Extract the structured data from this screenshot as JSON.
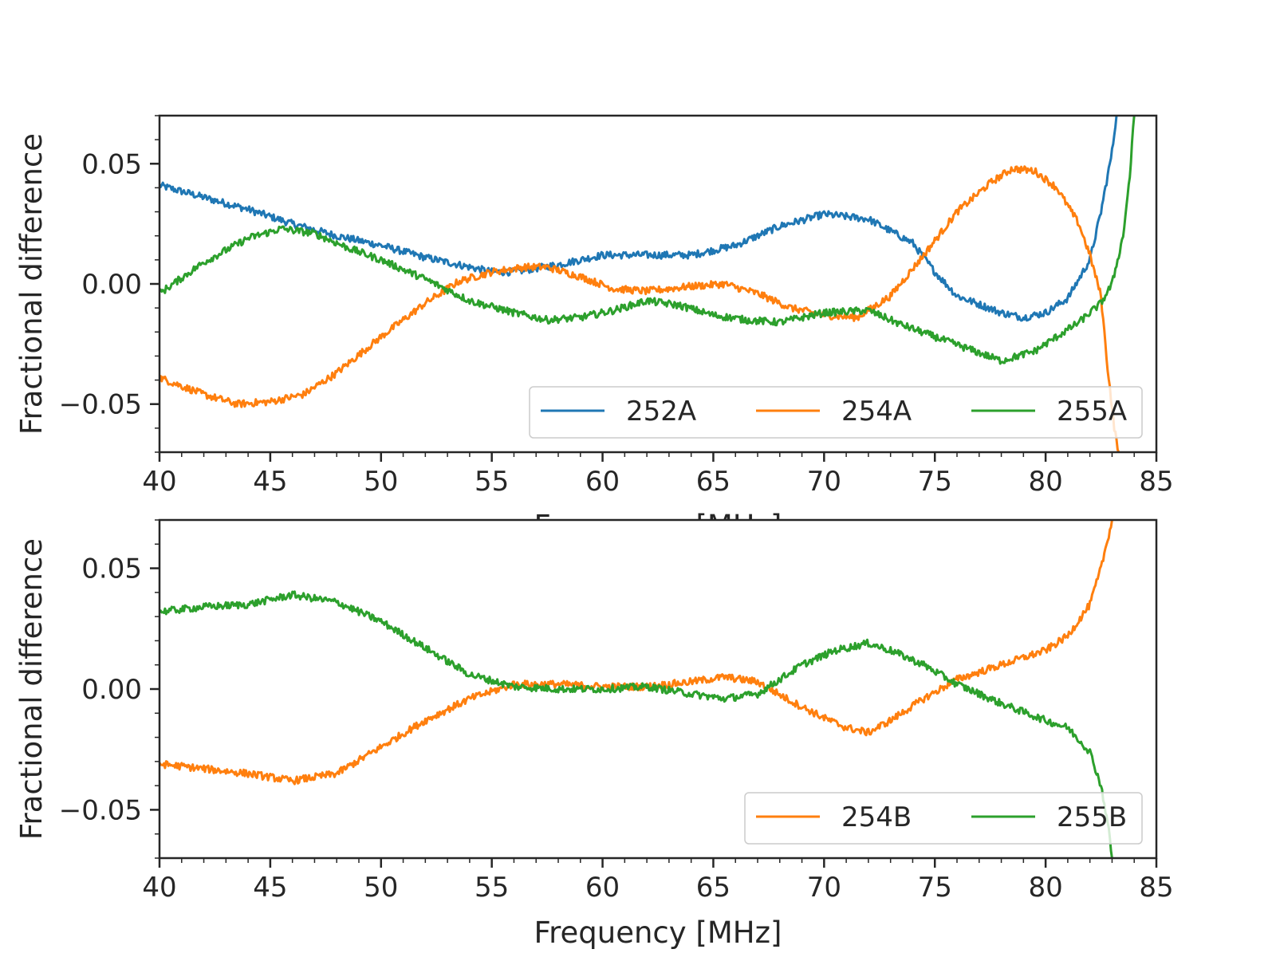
{
  "chart_data": [
    {
      "type": "line",
      "panel": "top",
      "xlabel": "Frequency [MHz]",
      "ylabel": "Fractional difference",
      "xlim": [
        40,
        85
      ],
      "ylim": [
        -0.07,
        0.07
      ],
      "xticks": [
        40,
        45,
        50,
        55,
        60,
        65,
        70,
        75,
        80,
        85
      ],
      "xtick_labels": [
        "40",
        "45",
        "50",
        "55",
        "60",
        "65",
        "70",
        "75",
        "80",
        "85"
      ],
      "yticks": [
        -0.05,
        0.0,
        0.05
      ],
      "ytick_labels": [
        "−0.05",
        "0.00",
        "0.05"
      ],
      "legend_position": "lower-right",
      "series": [
        {
          "name": "252A",
          "color": "#1f77b4",
          "x": [
            40,
            42,
            44,
            46,
            48,
            50,
            52,
            54,
            55,
            56,
            58,
            60,
            62,
            64,
            66,
            68,
            70,
            72,
            74,
            75,
            76,
            78,
            79,
            80,
            81,
            82,
            82.5,
            83,
            83.2
          ],
          "y": [
            0.041,
            0.036,
            0.031,
            0.025,
            0.02,
            0.016,
            0.011,
            0.007,
            0.005,
            0.005,
            0.008,
            0.012,
            0.012,
            0.012,
            0.016,
            0.024,
            0.029,
            0.027,
            0.017,
            0.005,
            -0.005,
            -0.012,
            -0.014,
            -0.012,
            -0.006,
            0.01,
            0.03,
            0.055,
            0.07
          ]
        },
        {
          "name": "254A",
          "color": "#ff7f0e",
          "x": [
            40,
            42,
            43.5,
            45,
            46.5,
            48,
            50,
            52,
            53.5,
            55,
            56.5,
            57.5,
            59,
            60.5,
            62,
            64,
            65.5,
            67,
            68.5,
            70,
            71.5,
            73,
            74.5,
            76,
            77.5,
            78.5,
            79.5,
            80.5,
            81.5,
            82,
            82.5,
            82.8,
            83.1,
            83.3
          ],
          "y": [
            -0.039,
            -0.046,
            -0.05,
            -0.049,
            -0.046,
            -0.037,
            -0.022,
            -0.008,
            0.001,
            0.005,
            0.007,
            0.007,
            0.003,
            -0.002,
            -0.003,
            -0.001,
            0.0,
            -0.004,
            -0.01,
            -0.013,
            -0.014,
            -0.005,
            0.012,
            0.03,
            0.042,
            0.048,
            0.047,
            0.04,
            0.025,
            0.012,
            -0.005,
            -0.035,
            -0.06,
            -0.07
          ]
        },
        {
          "name": "255A",
          "color": "#2ca02c",
          "x": [
            40,
            42,
            44,
            45.5,
            47,
            48.5,
            50,
            52,
            54,
            56,
            57.5,
            59,
            60.5,
            62,
            63.5,
            65,
            66.5,
            68,
            70,
            72,
            73.5,
            75,
            76.5,
            78,
            79.5,
            80.5,
            81.5,
            82.5,
            83,
            83.5,
            83.8,
            84
          ],
          "y": [
            -0.004,
            0.009,
            0.019,
            0.023,
            0.021,
            0.015,
            0.01,
            0.002,
            -0.007,
            -0.012,
            -0.015,
            -0.014,
            -0.011,
            -0.007,
            -0.009,
            -0.013,
            -0.015,
            -0.016,
            -0.012,
            -0.011,
            -0.017,
            -0.022,
            -0.027,
            -0.032,
            -0.028,
            -0.022,
            -0.016,
            -0.008,
            0.0,
            0.02,
            0.045,
            0.07
          ]
        }
      ]
    },
    {
      "type": "line",
      "panel": "bottom",
      "xlabel": "Frequency [MHz]",
      "ylabel": "Fractional difference",
      "xlim": [
        40,
        85
      ],
      "ylim": [
        -0.07,
        0.07
      ],
      "xticks": [
        40,
        45,
        50,
        55,
        60,
        65,
        70,
        75,
        80,
        85
      ],
      "xtick_labels": [
        "40",
        "45",
        "50",
        "55",
        "60",
        "65",
        "70",
        "75",
        "80",
        "85"
      ],
      "yticks": [
        -0.05,
        0.0,
        0.05
      ],
      "ytick_labels": [
        "−0.05",
        "0.00",
        "0.05"
      ],
      "legend_position": "lower-right",
      "series": [
        {
          "name": "254B",
          "color": "#ff7f0e",
          "x": [
            40,
            42,
            44,
            46,
            48,
            50,
            52,
            54,
            56,
            58,
            60,
            62,
            64,
            65.5,
            67,
            68.5,
            70,
            71,
            72,
            73,
            74.5,
            76,
            78,
            80,
            81,
            82,
            82.5,
            83
          ],
          "y": [
            -0.031,
            -0.033,
            -0.035,
            -0.038,
            -0.035,
            -0.024,
            -0.013,
            -0.004,
            0.002,
            0.002,
            0.001,
            0.001,
            0.003,
            0.005,
            0.003,
            -0.005,
            -0.012,
            -0.016,
            -0.018,
            -0.013,
            -0.004,
            0.004,
            0.01,
            0.016,
            0.022,
            0.035,
            0.05,
            0.07
          ]
        },
        {
          "name": "255B",
          "color": "#2ca02c",
          "x": [
            40,
            42,
            44,
            46,
            48,
            50,
            52,
            54,
            56,
            58,
            60,
            62,
            64,
            65.5,
            67,
            69,
            70.5,
            72,
            73,
            74.5,
            76,
            78,
            80,
            81,
            82,
            82.5,
            82.8,
            83
          ],
          "y": [
            0.032,
            0.034,
            0.035,
            0.039,
            0.036,
            0.028,
            0.017,
            0.006,
            0.001,
            0.0,
            0.0,
            0.001,
            -0.002,
            -0.004,
            -0.002,
            0.01,
            0.016,
            0.019,
            0.016,
            0.01,
            0.002,
            -0.006,
            -0.013,
            -0.016,
            -0.026,
            -0.04,
            -0.055,
            -0.07
          ]
        }
      ]
    }
  ]
}
